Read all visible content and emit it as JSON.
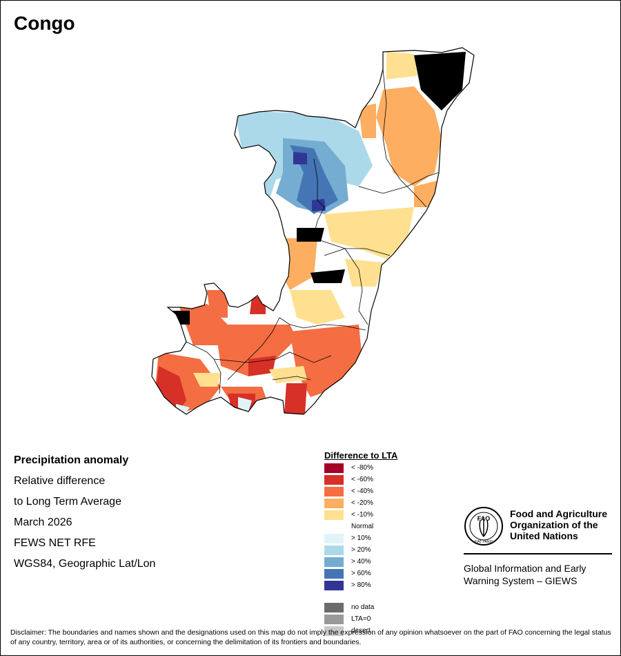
{
  "map_title": "Congo",
  "info": {
    "heading": "Precipitation anomaly",
    "line1": "Relative difference",
    "line2": "to Long Term Average",
    "period": "March 2026",
    "source": "FEWS NET RFE",
    "projection": "WGS84, Geographic Lat/Lon"
  },
  "legend": {
    "title": "Difference to LTA",
    "classes": [
      {
        "label": "< -80%",
        "color": "#a50026"
      },
      {
        "label": "< -60%",
        "color": "#d73027"
      },
      {
        "label": "< -40%",
        "color": "#f46d43"
      },
      {
        "label": "< -20%",
        "color": "#fdae61"
      },
      {
        "label": "< -10%",
        "color": "#fee090"
      },
      {
        "label": "Normal",
        "color": "#ffffff"
      },
      {
        "label": "> 10%",
        "color": "#e0f3f8"
      },
      {
        "label": "> 20%",
        "color": "#abd9e9"
      },
      {
        "label": "> 40%",
        "color": "#74add1"
      },
      {
        "label": "> 60%",
        "color": "#4575b4"
      },
      {
        "label": "> 80%",
        "color": "#313695"
      }
    ],
    "special": [
      {
        "label": "no data",
        "color": "#6b6b6b"
      },
      {
        "label": "LTA=0",
        "color": "#999999"
      },
      {
        "label": "desert",
        "color": "#c8c8c8"
      }
    ]
  },
  "fao": {
    "name_line1": "Food and Agriculture",
    "name_line2": "Organization of the",
    "name_line3": "United Nations",
    "logo_text": "FAO",
    "logo_motto": "FIAT PANIS",
    "system_line1": "Global Information and Early",
    "system_line2": "Warning System – GIEWS"
  },
  "disclaimer": "Disclaimer: The boundaries and names shown and the designations used on this map do not imply the expression of any opinion whatsoever on the part of FAO concerning the legal status of any country, territory, area or of its authorities, or concerning the delimitation of its frontiers and boundaries.",
  "anomaly_zones": [
    {
      "class": "> 20%",
      "color": "#abd9e9"
    },
    {
      "class": "> 40%",
      "color": "#74add1"
    },
    {
      "class": "> 60%",
      "color": "#4575b4"
    },
    {
      "class": "> 80%",
      "color": "#313695"
    },
    {
      "class": "< -20%",
      "color": "#fdae61"
    },
    {
      "class": "< -40%",
      "color": "#f46d43"
    },
    {
      "class": "< -60%",
      "color": "#d73027"
    },
    {
      "class": "> 10%",
      "color": "#e0f3f8"
    },
    {
      "class": "< -10%",
      "color": "#fee090"
    }
  ]
}
